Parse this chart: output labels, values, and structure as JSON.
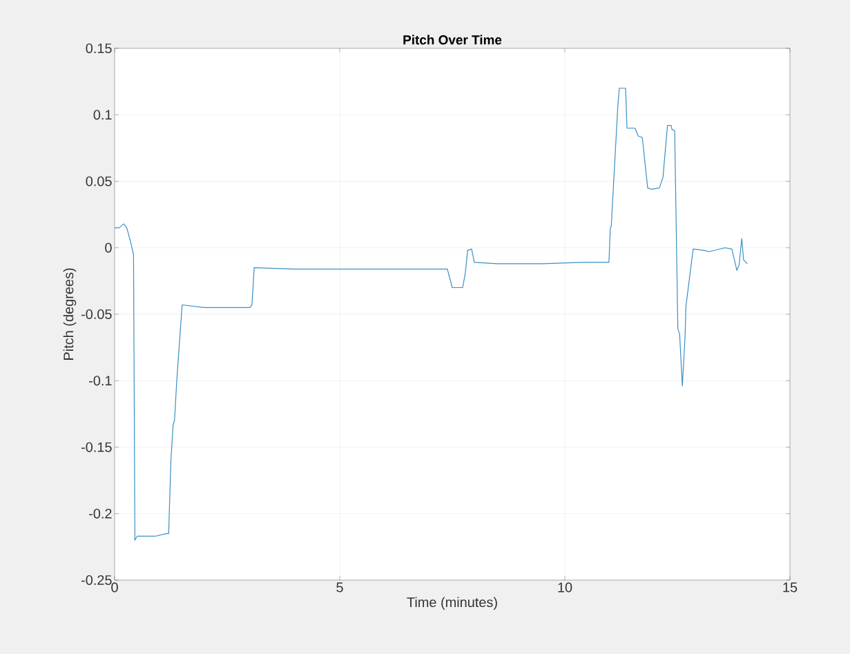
{
  "chart_data": {
    "type": "line",
    "title": "Pitch Over Time",
    "xlabel": "Time (minutes)",
    "ylabel": "Pitch (degrees)",
    "xlim": [
      0,
      15
    ],
    "ylim": [
      -0.25,
      0.15
    ],
    "xticks": [
      0,
      5,
      10,
      15
    ],
    "yticks": [
      -0.25,
      -0.2,
      -0.15,
      -0.1,
      -0.05,
      0,
      0.05,
      0.1,
      0.15
    ],
    "grid": true,
    "marker": "none",
    "line_style": "solid",
    "series": [
      {
        "color": "#3a8fc4",
        "x": [
          0,
          0.1,
          0.2,
          0.27,
          0.35,
          0.42,
          0.45,
          0.5,
          0.6,
          0.9,
          1.15,
          1.2,
          1.25,
          1.3,
          1.33,
          1.38,
          1.5,
          2.0,
          2.5,
          3.0,
          3.05,
          3.1,
          4.0,
          5.0,
          6.0,
          7.0,
          7.39,
          7.5,
          7.73,
          7.79,
          7.84,
          7.93,
          7.99,
          8.5,
          9.5,
          10.4,
          10.98,
          11.01,
          11.03,
          11.18,
          11.21,
          11.35,
          11.38,
          11.56,
          11.63,
          11.72,
          11.84,
          11.92,
          12.1,
          12.18,
          12.28,
          12.36,
          12.38,
          12.44,
          12.51,
          12.55,
          12.61,
          12.67,
          12.69,
          12.85,
          13.1,
          13.2,
          13.56,
          13.71,
          13.82,
          13.87,
          13.93,
          13.97,
          14.05
        ],
        "values": [
          0.015,
          0.015,
          0.018,
          0.015,
          0.005,
          -0.005,
          -0.22,
          -0.217,
          -0.217,
          -0.217,
          -0.215,
          -0.215,
          -0.16,
          -0.133,
          -0.13,
          -0.1,
          -0.043,
          -0.045,
          -0.045,
          -0.045,
          -0.043,
          -0.015,
          -0.016,
          -0.016,
          -0.016,
          -0.016,
          -0.016,
          -0.03,
          -0.03,
          -0.019,
          -0.002,
          -0.001,
          -0.011,
          -0.012,
          -0.012,
          -0.011,
          -0.011,
          0.015,
          0.016,
          0.108,
          0.12,
          0.12,
          0.09,
          0.09,
          0.084,
          0.083,
          0.045,
          0.044,
          0.045,
          0.053,
          0.092,
          0.092,
          0.089,
          0.088,
          -0.061,
          -0.065,
          -0.104,
          -0.067,
          -0.044,
          -0.001,
          -0.002,
          -0.003,
          0,
          -0.001,
          -0.017,
          -0.013,
          0.007,
          -0.009,
          -0.012
        ]
      }
    ]
  }
}
